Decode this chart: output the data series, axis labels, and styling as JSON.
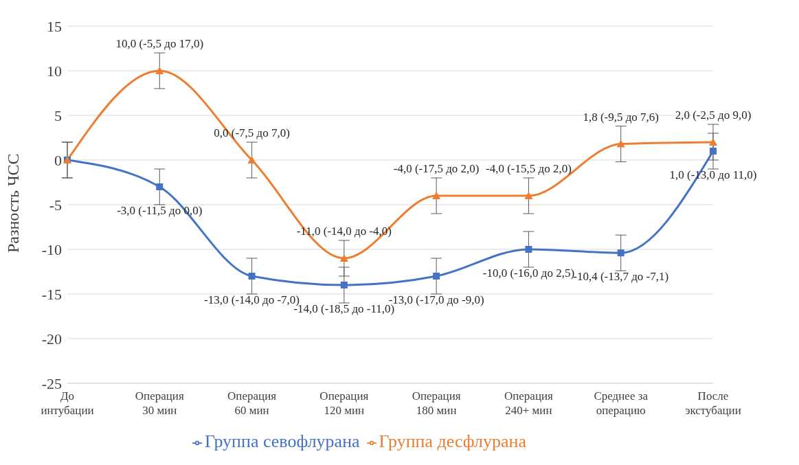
{
  "chart_data": {
    "type": "line",
    "ylabel": "Разность ЧСС",
    "categories": [
      "До\nинтубации",
      "Операция\n30 мин",
      "Операция\n60 мин",
      "Операция\n120 мин",
      "Операция\n180 мин",
      "Операция\n240+ мин",
      "Среднее за\nоперацию",
      "После\nэкстубации"
    ],
    "series": [
      {
        "name": "Группа севофлурана",
        "color": "#4472c4",
        "marker": "square",
        "values": [
          0,
          -3,
          -13,
          -14,
          -13,
          -10,
          -10.4,
          1
        ],
        "errors": [
          2,
          2,
          2,
          2,
          2,
          2,
          2,
          2
        ],
        "value_labels": [
          null,
          "-3,0 (-11,5 до 0,0)",
          "-13,0 (-14,0 до -7,0)",
          "-14,0 (-18,5 до -11,0)",
          "-13,0 (-17,0 до -9,0)",
          "-10,0 (-16,0 до 2,5)",
          "-10,4 (-13,7 до -7,1)",
          "1,0 (-13,0 до 11,0)"
        ]
      },
      {
        "name": "Группа десфлурана",
        "color": "#ed7d31",
        "marker": "triangle",
        "values": [
          0,
          10,
          0,
          -11,
          -4,
          -4,
          1.8,
          2
        ],
        "errors": [
          2,
          2,
          2,
          2,
          2,
          2,
          2,
          2
        ],
        "value_labels": [
          null,
          "10,0 (-5,5 до 17,0)",
          "0,0 (-7,5 до 7,0)",
          "-11,0 (-14,0 до -4,0)",
          "-4,0 (-17,5 до 2,0)",
          "-4,0 (-15,5 до 2,0)",
          "1,8 (-9,5 до 7,6)",
          "2,0 (-2,5 до 9,0)"
        ]
      }
    ],
    "ylim": [
      -25,
      15
    ],
    "yticks": [
      -25,
      -20,
      -15,
      -10,
      -5,
      0,
      5,
      10,
      15
    ],
    "grid": "y",
    "legend": "bottom"
  }
}
